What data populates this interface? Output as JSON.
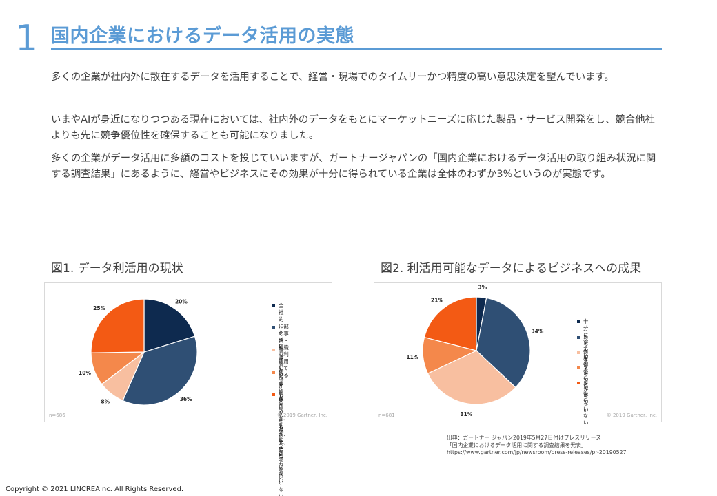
{
  "header": {
    "section_number": "1",
    "title": "国内企業におけるデータ活用の実態"
  },
  "paragraphs": [
    "多くの企業が社内外に散在するデータを活用することで、経営・現場でのタイムリーかつ精度の高い意思決定を望んでいます。",
    "いまやAIが身近になりつつある現在においては、社内外のデータをもとにマーケットニーズに応じた製品・サービス開発をし、競合他社よりも先に競争優位性を確保することも可能になりました。",
    "多くの企業がデータ活用に多額のコストを投じていいますが、ガートナージャパンの「国内企業におけるデータ活用の取り組み状況に関する調査結果」にあるように、経営やビジネスにその効果が十分に得られている企業は全体のわずか3%というのが実態です。"
  ],
  "figures": [
    {
      "title": "図1. データ利活用の現状",
      "n_label": "n=686",
      "credit": "© 2019 Gartner, Inc.",
      "legend": [
        "全社的に利活用している",
        "一部の事業・組織で利活用している",
        "経営層から要望があるが、\n利活用できていない",
        "現場から要望があるが、\n利活用できていない",
        "利活用しておらず、要望もない"
      ]
    },
    {
      "title": "図2. 利活用可能なデータによるビジネスへの成果",
      "n_label": "n=681",
      "credit": "© 2019 Gartner, Inc.",
      "legend": [
        "十分に得ている",
        "ある程度得ている",
        "あまり得ていない",
        "まったく得ていない",
        "分からない"
      ]
    }
  ],
  "chart_data": [
    {
      "type": "pie",
      "title": "図1. データ利活用の現状",
      "categories": [
        "全社的に利活用している",
        "一部の事業・組織で利活用している",
        "経営層から要望があるが、利活用できていない",
        "現場から要望があるが、利活用できていない",
        "利活用しておらず、要望もない"
      ],
      "values": [
        20,
        36,
        8,
        10,
        25
      ],
      "labels": [
        "20%",
        "36%",
        "8%",
        "10%",
        "25%"
      ],
      "colors": [
        "#0e2a4f",
        "#2f4f74",
        "#f8bfa0",
        "#f4884b",
        "#f35a14"
      ],
      "legend_position": "right"
    },
    {
      "type": "pie",
      "title": "図2. 利活用可能なデータによるビジネスへの成果",
      "categories": [
        "十分に得ている",
        "ある程度得ている",
        "あまり得ていない",
        "まったく得ていない",
        "分からない"
      ],
      "values": [
        3,
        34,
        31,
        11,
        21
      ],
      "labels": [
        "3%",
        "34%",
        "31%",
        "11%",
        "21%"
      ],
      "colors": [
        "#0e2a4f",
        "#2f4f74",
        "#f8bfa0",
        "#f4884b",
        "#f35a14"
      ],
      "legend_position": "right"
    }
  ],
  "source": {
    "line1": "出典：ガートナー ジャパン2019年5月27日付けプレスリリース",
    "line2": "「国内企業におけるデータ活用に関する調査結果を発表」",
    "url": "https://www.gartner.com/jp/newsroom/press-releases/pr-20190527"
  },
  "footer": {
    "copyright": "Copyright © 2021  LINCREAInc. All Rights Reserved."
  }
}
